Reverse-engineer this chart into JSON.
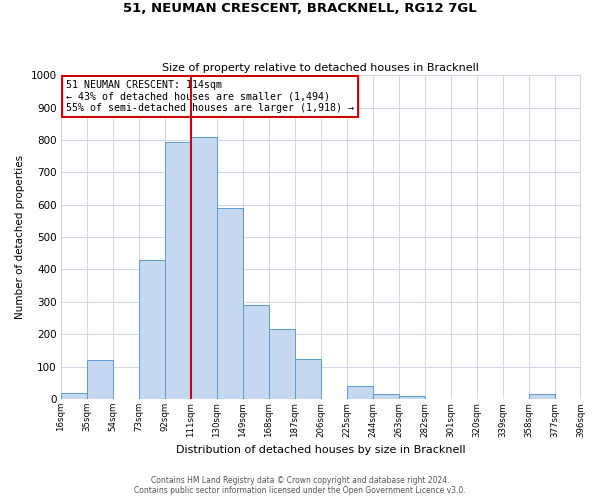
{
  "title": "51, NEUMAN CRESCENT, BRACKNELL, RG12 7GL",
  "subtitle": "Size of property relative to detached houses in Bracknell",
  "xlabel": "Distribution of detached houses by size in Bracknell",
  "ylabel": "Number of detached properties",
  "bar_color": "#c5d8f0",
  "bar_edge_color": "#5b9bd5",
  "background_color": "#ffffff",
  "grid_color": "#d0d8e8",
  "bin_labels": [
    "16sqm",
    "35sqm",
    "54sqm",
    "73sqm",
    "92sqm",
    "111sqm",
    "130sqm",
    "149sqm",
    "168sqm",
    "187sqm",
    "206sqm",
    "225sqm",
    "244sqm",
    "263sqm",
    "282sqm",
    "301sqm",
    "320sqm",
    "339sqm",
    "358sqm",
    "377sqm",
    "396sqm"
  ],
  "bin_edges": [
    16,
    35,
    54,
    73,
    92,
    111,
    130,
    149,
    168,
    187,
    206,
    225,
    244,
    263,
    282,
    301,
    320,
    339,
    358,
    377,
    396
  ],
  "bar_heights": [
    20,
    120,
    0,
    430,
    795,
    810,
    590,
    290,
    215,
    125,
    0,
    40,
    15,
    10,
    0,
    0,
    0,
    0,
    15,
    0
  ],
  "ylim": [
    0,
    1000
  ],
  "yticks": [
    0,
    100,
    200,
    300,
    400,
    500,
    600,
    700,
    800,
    900,
    1000
  ],
  "vline_x": 111,
  "vline_color": "#cc0000",
  "annotation_title": "51 NEUMAN CRESCENT: 114sqm",
  "annotation_line1": "← 43% of detached houses are smaller (1,494)",
  "annotation_line2": "55% of semi-detached houses are larger (1,918) →",
  "annotation_box_color": "#cc0000",
  "footer_line1": "Contains HM Land Registry data © Crown copyright and database right 2024.",
  "footer_line2": "Contains public sector information licensed under the Open Government Licence v3.0."
}
